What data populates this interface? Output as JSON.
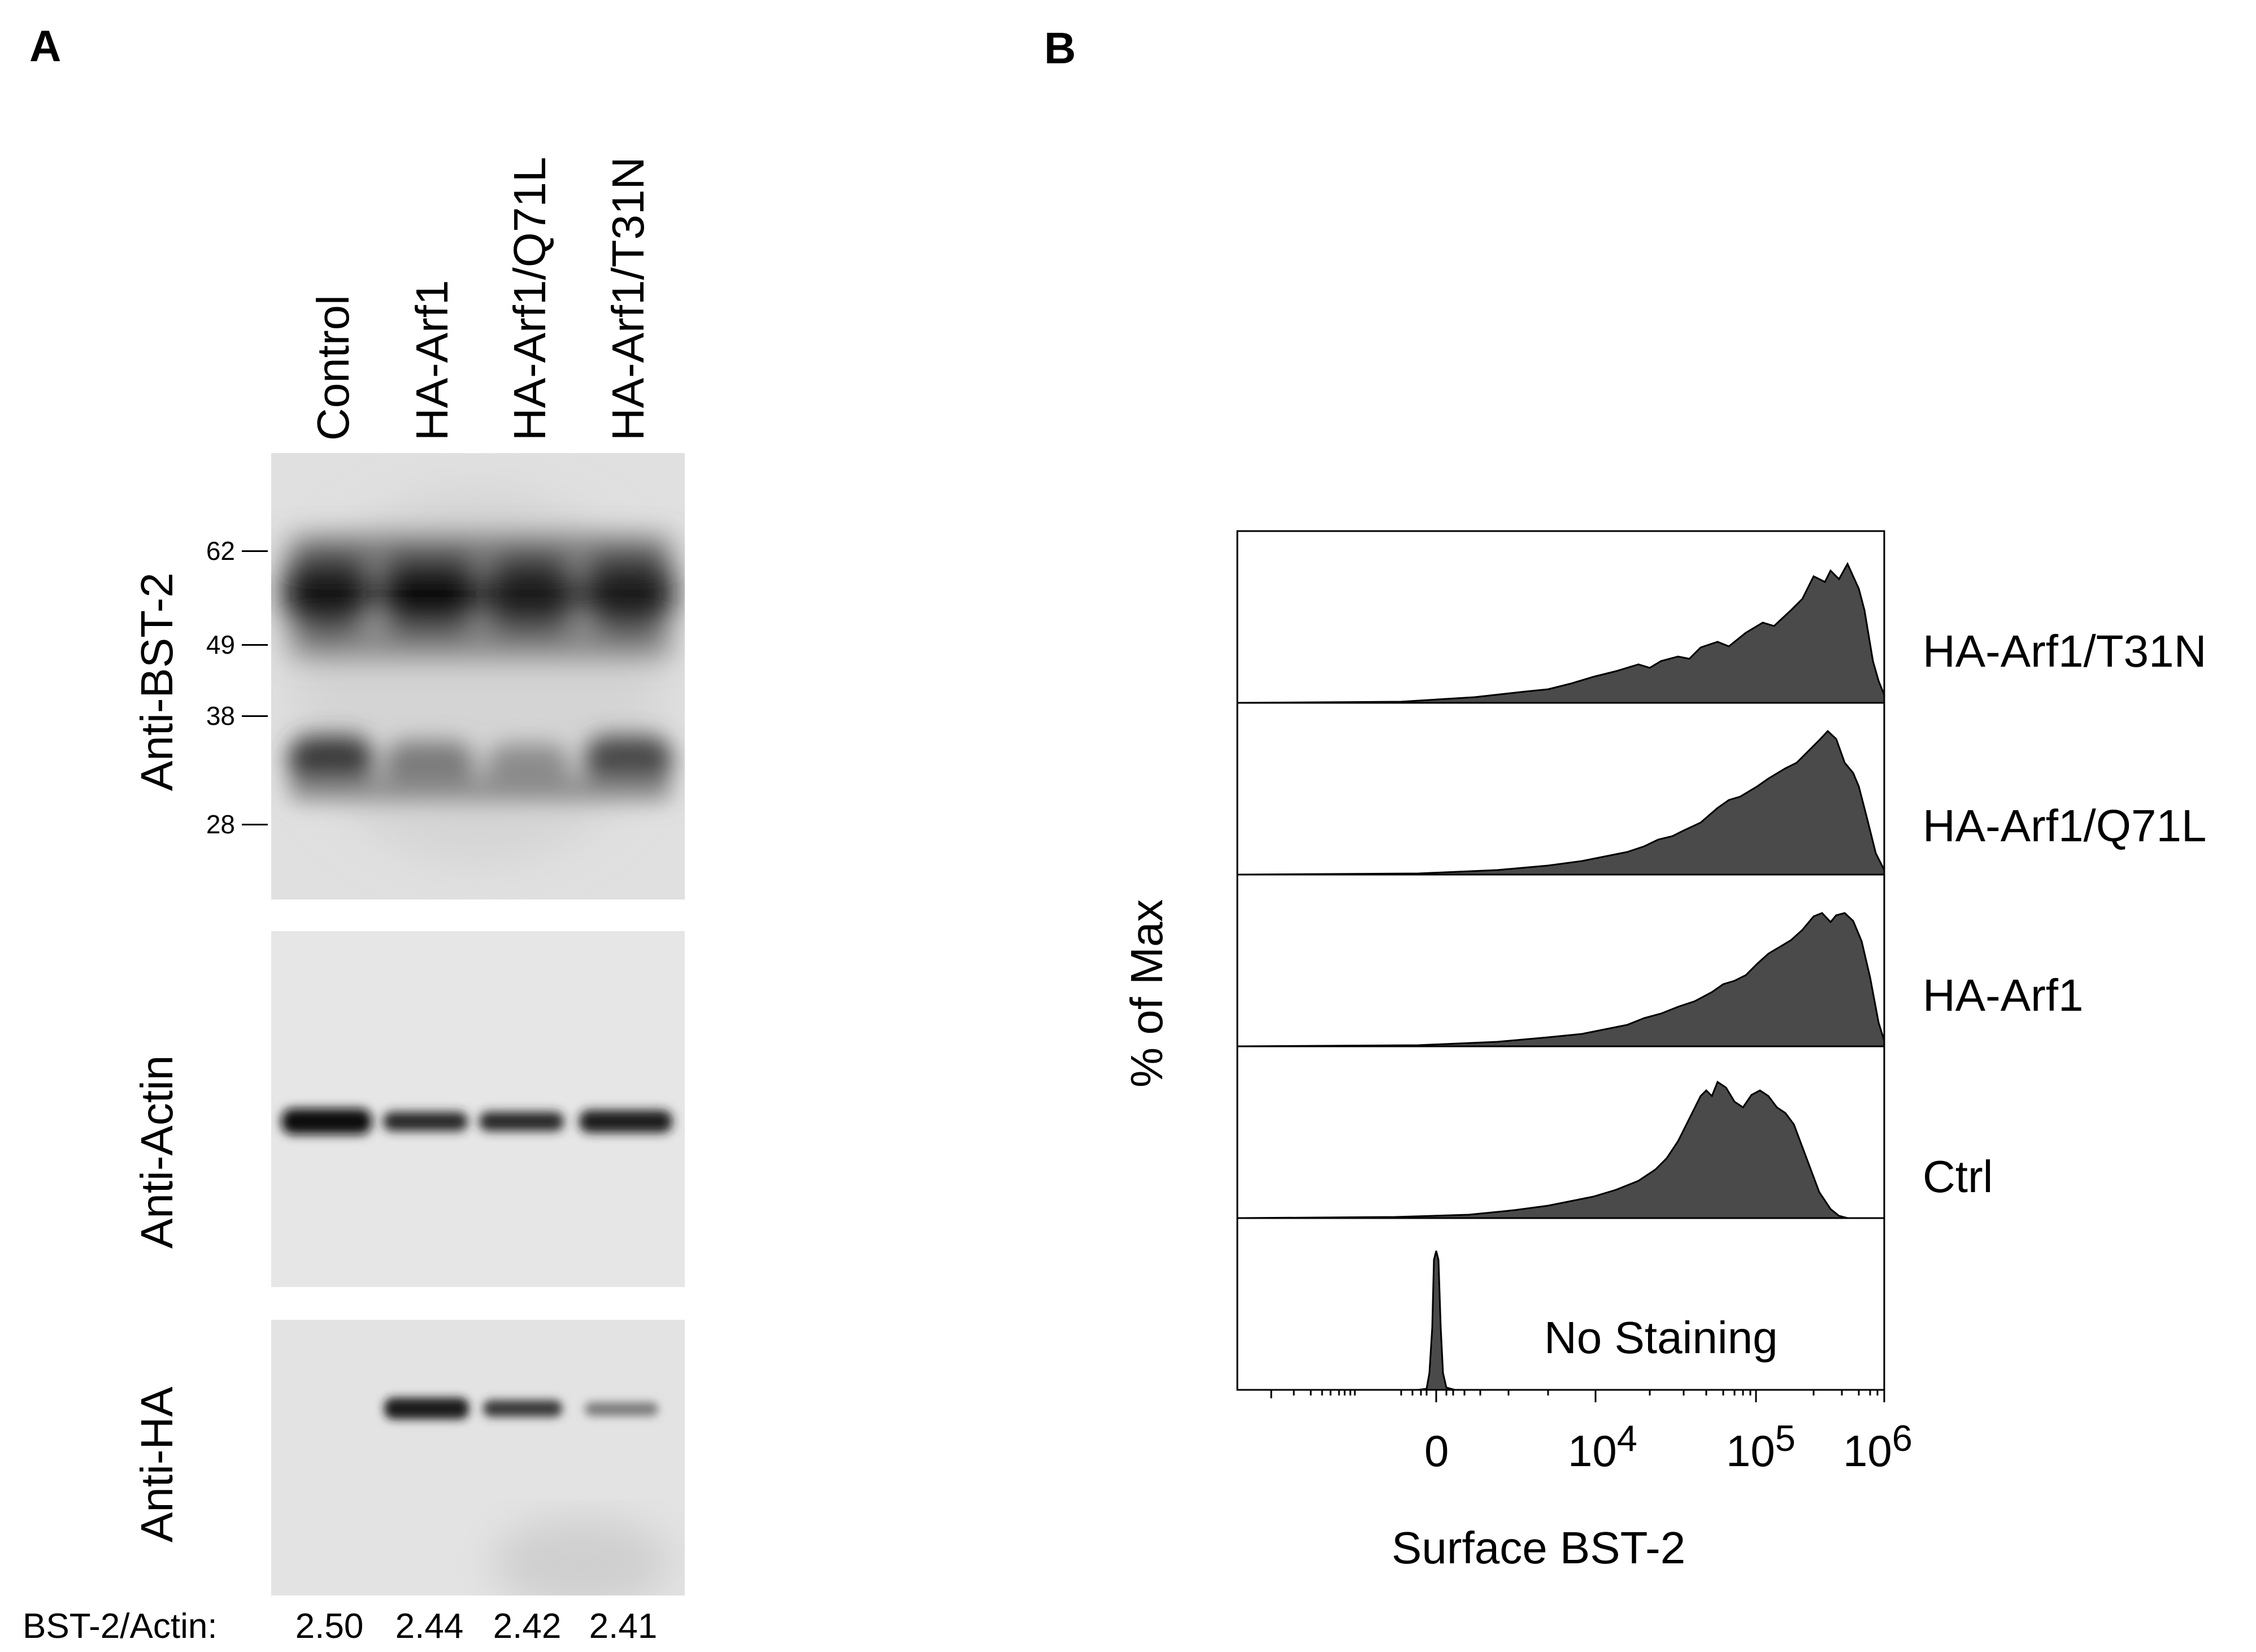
{
  "panel_a": {
    "letter": "A",
    "lanes": [
      "Control",
      "HA-Arf1",
      "HA-Arf1/Q71L",
      "HA-Arf1/T31N"
    ],
    "blots": [
      {
        "label": "Anti-BST-2"
      },
      {
        "label": "Anti-Actin"
      },
      {
        "label": "Anti-HA"
      }
    ],
    "markers": [
      "62",
      "49",
      "38",
      "28"
    ],
    "ratio": {
      "label": "BST-2/Actin:",
      "values": [
        "2.50",
        "2.44",
        "2.42",
        "2.41"
      ]
    }
  },
  "panel_b": {
    "letter": "B",
    "y_title": "% of Max",
    "x_title": "Surface BST-2",
    "tick_labels": [
      {
        "text": "0",
        "sup": ""
      },
      {
        "text": "10",
        "sup": "4"
      },
      {
        "text": "10",
        "sup": "5"
      },
      {
        "text": "10",
        "sup": "6"
      }
    ],
    "histogram_labels": [
      "HA-Arf1/T31N",
      "HA-Arf1/Q71L",
      "HA-Arf1",
      "Ctrl",
      "No Staining"
    ]
  },
  "colors": {
    "histogram_fill": "#4a4a4a",
    "blot_background": "#e2e2e2"
  }
}
